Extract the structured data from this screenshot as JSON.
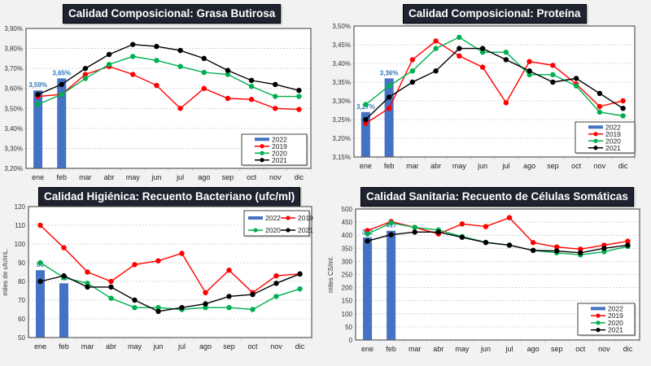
{
  "months": [
    "ene",
    "feb",
    "mar",
    "abr",
    "may",
    "jun",
    "jul",
    "ago",
    "sep",
    "oct",
    "nov",
    "dic"
  ],
  "colors": {
    "2022": "#4472c4",
    "2019": "#ff0000",
    "2020": "#00b050",
    "2021": "#000000",
    "bar_label": "#2e75b6",
    "title_bg": "#1f2330"
  },
  "chart_data": [
    {
      "id": "grasa",
      "type": "bar+line",
      "title": "Calidad Composicional: Grasa Butirosa",
      "xlabel": "",
      "ylabel": "",
      "ylim": [
        3.2,
        3.9
      ],
      "ytick_step": 0.1,
      "ytick_format": "percent2",
      "grid": true,
      "legend": "bottom-right",
      "legend_layout": "vertical",
      "categories": [
        "ene",
        "feb",
        "mar",
        "abr",
        "may",
        "jun",
        "jul",
        "ago",
        "sep",
        "oct",
        "nov",
        "dic"
      ],
      "bars": {
        "name": "2022",
        "values": [
          3.59,
          3.65
        ],
        "labels": [
          "3,59%",
          "3,65%"
        ]
      },
      "series": [
        {
          "name": "2019",
          "values": [
            3.56,
            3.57,
            3.67,
            3.71,
            3.67,
            3.615,
            3.5,
            3.6,
            3.55,
            3.545,
            3.5,
            3.495
          ]
        },
        {
          "name": "2020",
          "values": [
            3.52,
            3.57,
            3.65,
            3.72,
            3.76,
            3.74,
            3.71,
            3.68,
            3.67,
            3.61,
            3.56,
            3.56
          ]
        },
        {
          "name": "2021",
          "values": [
            3.57,
            3.62,
            3.7,
            3.77,
            3.82,
            3.81,
            3.79,
            3.75,
            3.69,
            3.64,
            3.62,
            3.59
          ]
        }
      ]
    },
    {
      "id": "proteina",
      "type": "bar+line",
      "title": "Calidad Composicional: Proteína",
      "xlabel": "",
      "ylabel": "",
      "ylim": [
        3.15,
        3.5
      ],
      "ytick_step": 0.05,
      "ytick_format": "percent2",
      "grid": true,
      "legend": "bottom-right",
      "legend_layout": "vertical",
      "categories": [
        "ene",
        "feb",
        "mar",
        "abr",
        "may",
        "jun",
        "jul",
        "ago",
        "sep",
        "oct",
        "nov",
        "dic"
      ],
      "bars": {
        "name": "2022",
        "values": [
          3.27,
          3.36
        ],
        "labels": [
          "3,27%",
          "3,36%"
        ]
      },
      "series": [
        {
          "name": "2019",
          "values": [
            3.24,
            3.28,
            3.41,
            3.46,
            3.42,
            3.39,
            3.295,
            3.405,
            3.395,
            3.345,
            3.285,
            3.3
          ]
        },
        {
          "name": "2020",
          "values": [
            3.29,
            3.34,
            3.38,
            3.44,
            3.47,
            3.43,
            3.43,
            3.37,
            3.37,
            3.34,
            3.27,
            3.26
          ]
        },
        {
          "name": "2021",
          "values": [
            3.25,
            3.31,
            3.35,
            3.38,
            3.44,
            3.44,
            3.41,
            3.38,
            3.35,
            3.36,
            3.32,
            3.28
          ]
        }
      ]
    },
    {
      "id": "bacteriano",
      "type": "bar+line",
      "title": "Calidad Higiénica: Recuento Bacteriano (ufc/ml)",
      "xlabel": "",
      "ylabel": "miles de ufc/mL.",
      "ylim": [
        50,
        120
      ],
      "ytick_step": 10,
      "ytick_format": "int",
      "grid": true,
      "legend": "top-right",
      "legend_layout": "grid",
      "categories": [
        "ene",
        "feb",
        "mar",
        "abr",
        "may",
        "jun",
        "jul",
        "ago",
        "sep",
        "oct",
        "nov",
        "dic"
      ],
      "bars": {
        "name": "2022",
        "values": [
          86,
          79
        ],
        "labels": [
          "86",
          "79"
        ]
      },
      "series": [
        {
          "name": "2019",
          "values": [
            110,
            98,
            85,
            80,
            89,
            91,
            95,
            74,
            86,
            74,
            83,
            84
          ]
        },
        {
          "name": "2020",
          "values": [
            90,
            82,
            79,
            71,
            66,
            66,
            65,
            66,
            66,
            65,
            72,
            76
          ]
        },
        {
          "name": "2021",
          "values": [
            80,
            83,
            77,
            77,
            70,
            64,
            66,
            68,
            72,
            73,
            79,
            84
          ]
        }
      ]
    },
    {
      "id": "somaticas",
      "type": "bar+line",
      "title": "Calidad Sanitaria: Recuento de Células Somáticas",
      "xlabel": "",
      "ylabel": "miles CS/ml.",
      "ylim": [
        0,
        500
      ],
      "ytick_step": 50,
      "ytick_format": "int",
      "grid": true,
      "legend": "bottom-right",
      "legend_layout": "vertical",
      "categories": [
        "ene",
        "feb",
        "mar",
        "abr",
        "may",
        "jun",
        "jul",
        "ago",
        "sep",
        "oct",
        "nov",
        "dic"
      ],
      "bars": {
        "name": "2022",
        "values": [
          392,
          417
        ],
        "labels": [
          "392",
          "417"
        ]
      },
      "series": [
        {
          "name": "2019",
          "values": [
            418,
            452,
            430,
            405,
            443,
            433,
            467,
            372,
            355,
            347,
            362,
            377
          ]
        },
        {
          "name": "2020",
          "values": [
            405,
            447,
            430,
            420,
            395,
            373,
            362,
            342,
            333,
            325,
            337,
            357
          ]
        },
        {
          "name": "2021",
          "values": [
            378,
            402,
            412,
            412,
            392,
            372,
            362,
            342,
            340,
            333,
            350,
            362
          ]
        }
      ]
    }
  ]
}
